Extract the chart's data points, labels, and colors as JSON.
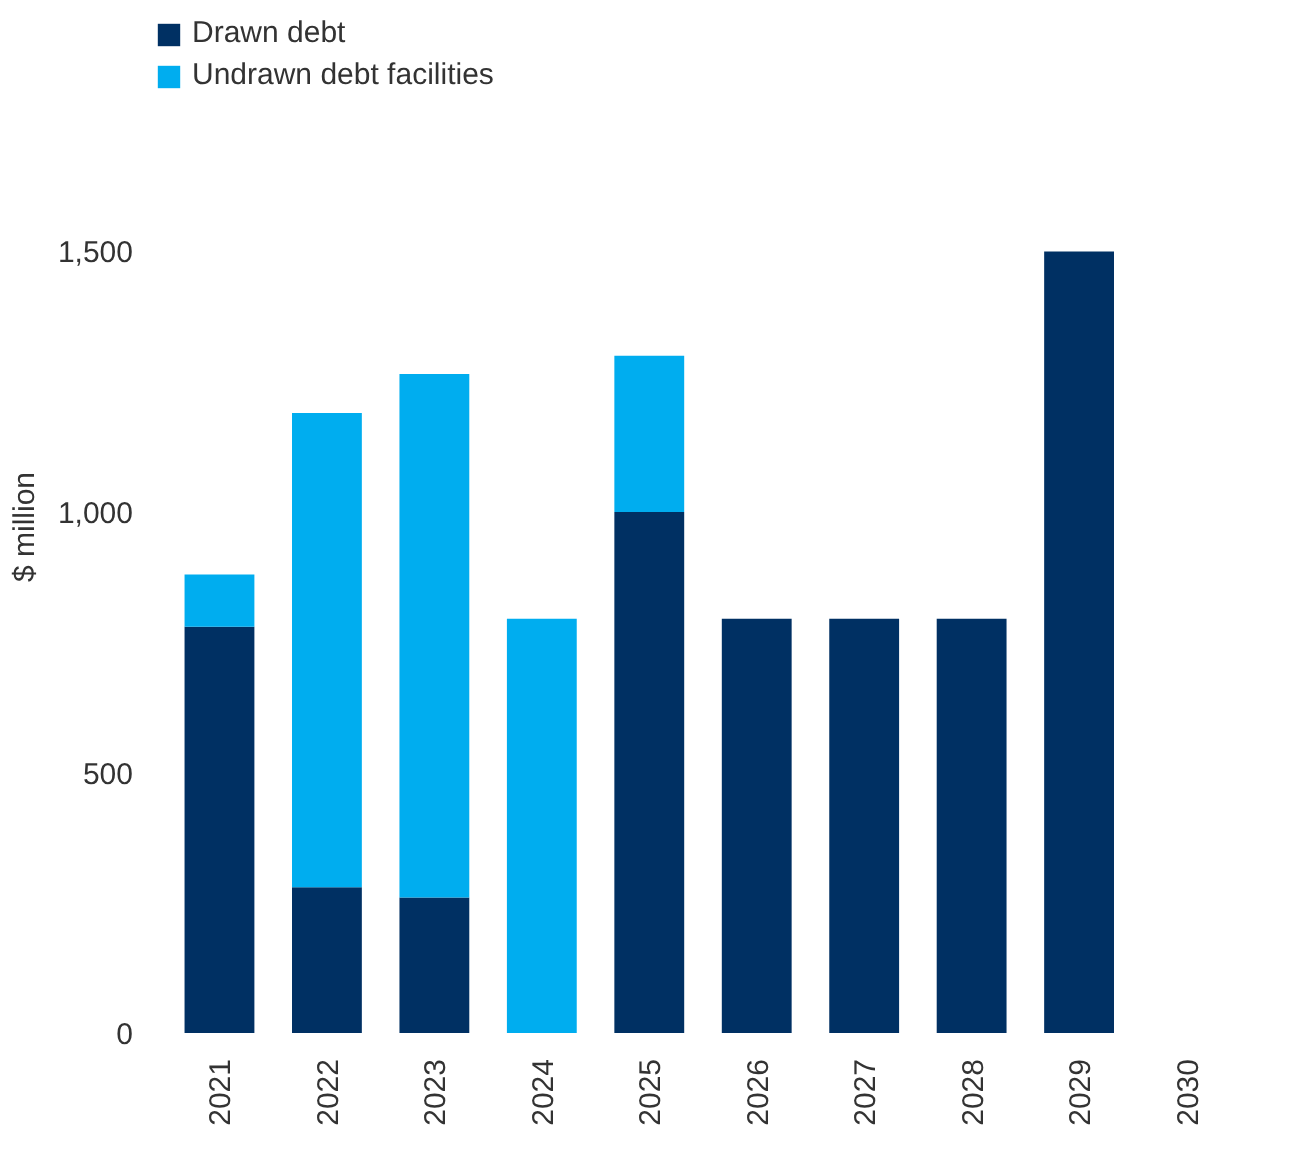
{
  "chart_data": {
    "type": "bar",
    "stacked": true,
    "ylabel": "$ million",
    "categories": [
      "2021",
      "2022",
      "2023",
      "2024",
      "2025",
      "2026",
      "2027",
      "2028",
      "2029",
      "2030"
    ],
    "series": [
      {
        "name": "Drawn debt",
        "color": "#003063",
        "values": [
          780,
          280,
          260,
          0,
          1000,
          795,
          795,
          795,
          1500,
          0
        ]
      },
      {
        "name": "Undrawn debt facilities",
        "color": "#00adef",
        "values": [
          100,
          910,
          1005,
          795,
          300,
          0,
          0,
          0,
          0,
          0
        ]
      }
    ],
    "ylim": [
      0,
      1500
    ],
    "yticks": [
      {
        "value": 0,
        "label": "0"
      },
      {
        "value": 500,
        "label": "500"
      },
      {
        "value": 1000,
        "label": "1,000"
      },
      {
        "value": 1500,
        "label": "1,500"
      }
    ],
    "grid": false,
    "legend": "top left"
  }
}
